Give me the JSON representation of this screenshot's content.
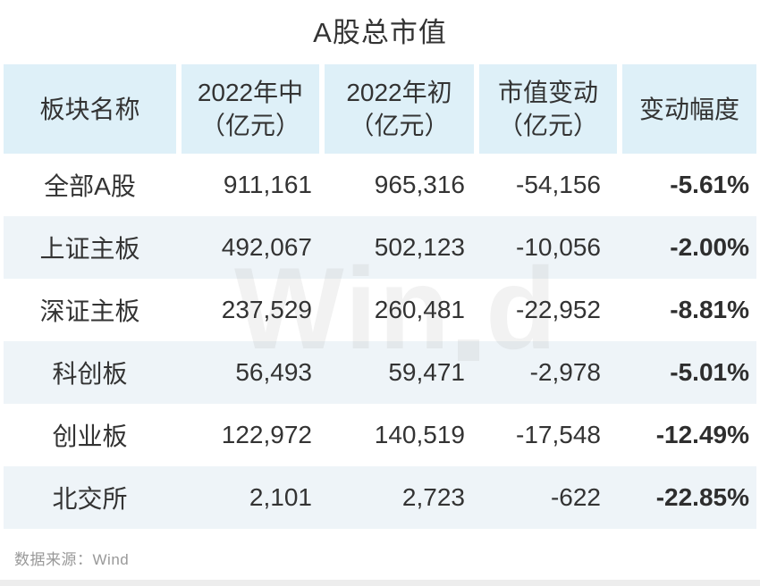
{
  "title": "A股总市值",
  "watermark": {
    "part1": "Win",
    "part2": "d",
    "full": "Wind"
  },
  "source_note": "数据来源：Wind",
  "colors": {
    "header_bg": "#def0f8",
    "stripe_bg": "#eef4f8",
    "text": "#333333",
    "source_text": "#999999"
  },
  "chart_data": {
    "type": "table",
    "title": "A股总市值",
    "columns": [
      {
        "line1": "板块名称",
        "line2": ""
      },
      {
        "line1": "2022年中",
        "line2": "（亿元）"
      },
      {
        "line1": "2022年初",
        "line2": "（亿元）"
      },
      {
        "line1": "市值变动",
        "line2": "（亿元）"
      },
      {
        "line1": "变动幅度",
        "line2": ""
      }
    ],
    "rows": [
      {
        "name": "全部A股",
        "mid_2022": "911,161",
        "start_2022": "965,316",
        "change": "-54,156",
        "pct": "-5.61%"
      },
      {
        "name": "上证主板",
        "mid_2022": "492,067",
        "start_2022": "502,123",
        "change": "-10,056",
        "pct": "-2.00%"
      },
      {
        "name": "深证主板",
        "mid_2022": "237,529",
        "start_2022": "260,481",
        "change": "-22,952",
        "pct": "-8.81%"
      },
      {
        "name": "科创板",
        "mid_2022": "56,493",
        "start_2022": "59,471",
        "change": "-2,978",
        "pct": "-5.01%"
      },
      {
        "name": "创业板",
        "mid_2022": "122,972",
        "start_2022": "140,519",
        "change": "-17,548",
        "pct": "-12.49%"
      },
      {
        "name": "北交所",
        "mid_2022": "2,101",
        "start_2022": "2,723",
        "change": "-622",
        "pct": "-22.85%"
      }
    ],
    "source": "Wind"
  }
}
